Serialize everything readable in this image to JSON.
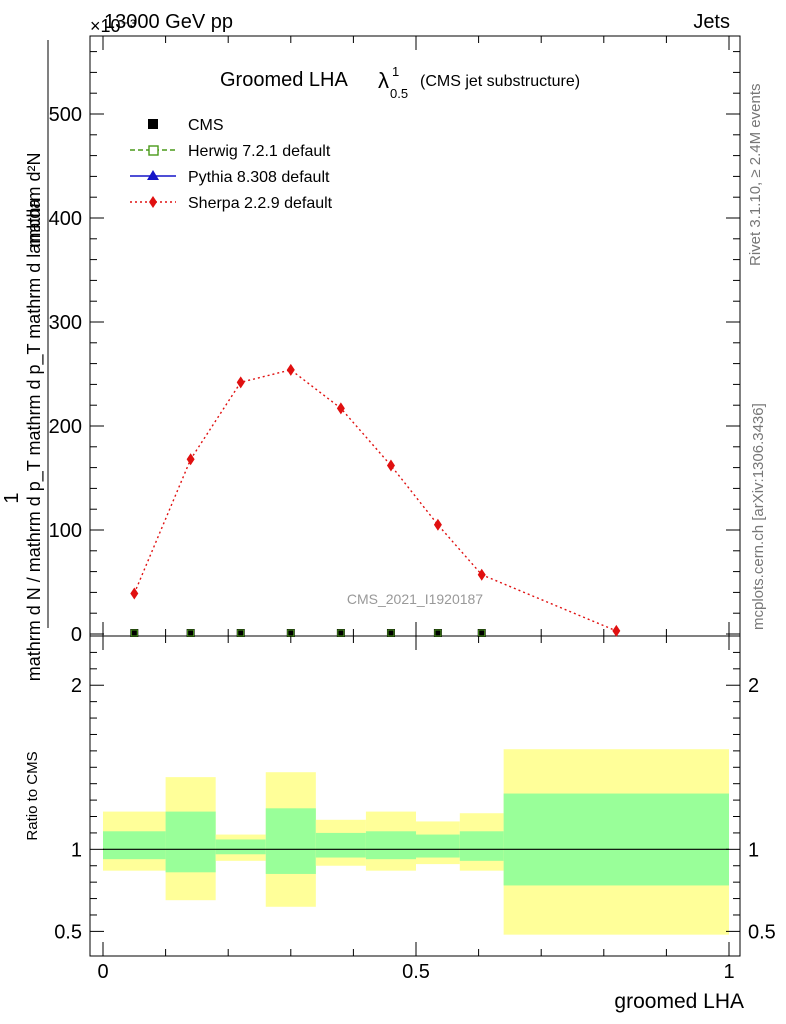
{
  "header": {
    "left": "13000 GeV pp",
    "right": "Jets",
    "exponent": "×10⁻³"
  },
  "side_labels": {
    "rivet": "Rivet 3.1.10, ≥ 2.4M events",
    "mcplots": "mcplots.cern.ch [arXiv:1306.3436]"
  },
  "watermark": "CMS_2021_I1920187",
  "chart_data": [
    {
      "type": "line",
      "title": "Groomed LHA",
      "title_symbol": "λ",
      "title_sup": "1",
      "title_sub": "0.5",
      "title_note": "(CMS jet substructure)",
      "ylabel_top": "1",
      "ylabel_num": "mathrm d²N",
      "ylabel_den": "mathrm d N / mathrm d p_T mathrm d p_T mathrm d lambda",
      "ylim": [
        0,
        575
      ],
      "yticks": [
        0,
        100,
        200,
        300,
        400,
        500
      ],
      "ytick_labels": [
        "0",
        "100",
        "200",
        "300",
        "400",
        "500"
      ],
      "xlim": [
        0,
        1
      ],
      "legend_position": "top-left",
      "legend": [
        {
          "label": "CMS",
          "color": "#000000",
          "marker": "square-filled",
          "line": "none"
        },
        {
          "label": "Herwig 7.2.1 default",
          "color": "#4a9a1a",
          "marker": "square-open",
          "line": "dashed"
        },
        {
          "label": "Pythia 8.308 default",
          "color": "#1515c8",
          "marker": "triangle",
          "line": "solid"
        },
        {
          "label": "Sherpa 2.2.9 default",
          "color": "#e01010",
          "marker": "diamond",
          "line": "dotted"
        }
      ],
      "series": [
        {
          "name": "Sherpa 2.2.9 default",
          "color": "#e01010",
          "x": [
            0.05,
            0.14,
            0.22,
            0.3,
            0.38,
            0.46,
            0.535,
            0.605,
            0.82
          ],
          "y": [
            39,
            168,
            242,
            254,
            217,
            162,
            105,
            57,
            3
          ]
        },
        {
          "name": "CMS",
          "color": "#000000",
          "x": [
            0.05,
            0.14,
            0.22,
            0.3,
            0.38,
            0.46,
            0.535,
            0.605,
            0.82
          ],
          "y": [
            0,
            0,
            0,
            0,
            0,
            0,
            0,
            0,
            0
          ]
        }
      ]
    },
    {
      "type": "area",
      "ylabel": "Ratio to CMS",
      "xlabel": "groomed LHA",
      "xlim": [
        0,
        1
      ],
      "ylim": [
        0.35,
        2.3
      ],
      "xticks": [
        0,
        0.5,
        1
      ],
      "xtick_labels": [
        "0",
        "0.5",
        "1"
      ],
      "yticks": [
        0.5,
        1,
        2
      ],
      "ytick_labels": [
        "0.5",
        "1",
        "2"
      ],
      "reference": 1,
      "bands": [
        {
          "x0": 0.0,
          "x1": 0.1,
          "yellow": [
            0.87,
            1.23
          ],
          "green": [
            0.94,
            1.11
          ]
        },
        {
          "x0": 0.1,
          "x1": 0.18,
          "yellow": [
            0.69,
            1.44
          ],
          "green": [
            0.86,
            1.23
          ]
        },
        {
          "x0": 0.18,
          "x1": 0.26,
          "yellow": [
            0.93,
            1.09
          ],
          "green": [
            0.97,
            1.06
          ]
        },
        {
          "x0": 0.26,
          "x1": 0.34,
          "yellow": [
            0.65,
            1.47
          ],
          "green": [
            0.85,
            1.25
          ]
        },
        {
          "x0": 0.34,
          "x1": 0.42,
          "yellow": [
            0.9,
            1.18
          ],
          "green": [
            0.95,
            1.1
          ]
        },
        {
          "x0": 0.42,
          "x1": 0.5,
          "yellow": [
            0.87,
            1.23
          ],
          "green": [
            0.94,
            1.11
          ]
        },
        {
          "x0": 0.5,
          "x1": 0.57,
          "yellow": [
            0.91,
            1.17
          ],
          "green": [
            0.95,
            1.09
          ]
        },
        {
          "x0": 0.57,
          "x1": 0.64,
          "yellow": [
            0.87,
            1.22
          ],
          "green": [
            0.93,
            1.11
          ]
        },
        {
          "x0": 0.64,
          "x1": 1.0,
          "yellow": [
            0.48,
            1.61
          ],
          "green": [
            0.78,
            1.34
          ]
        }
      ]
    }
  ]
}
